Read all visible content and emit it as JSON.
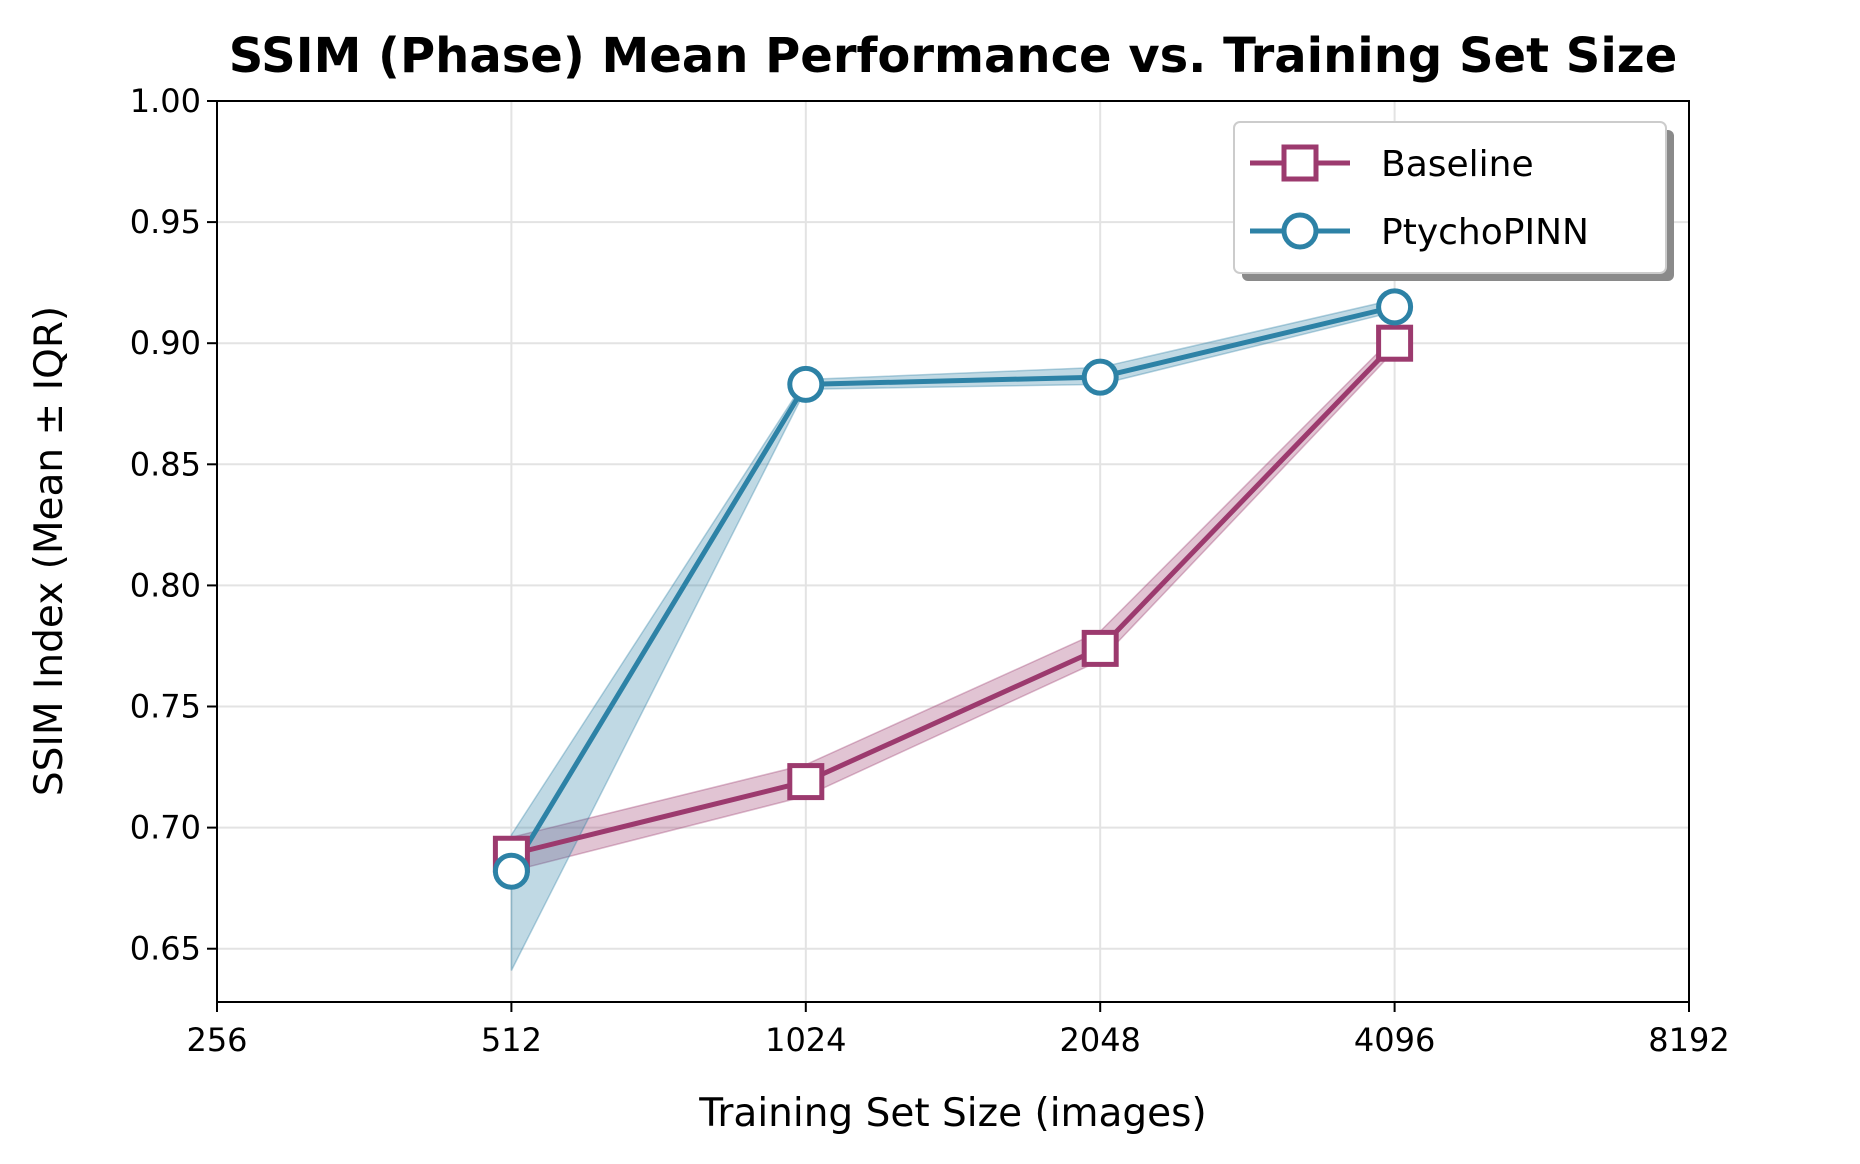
{
  "chart_data": {
    "type": "line",
    "title": "SSIM (Phase) Mean Performance vs. Training Set Size",
    "xlabel": "Training Set Size (images)",
    "ylabel": "SSIM Index (Mean ± IQR)",
    "x_scale": "log2",
    "xlim": [
      256,
      8192
    ],
    "ylim": [
      0.628,
      1.0
    ],
    "xticks": [
      256,
      512,
      1024,
      2048,
      4096,
      8192
    ],
    "xtick_labels": [
      "256",
      "512",
      "1024",
      "2048",
      "4096",
      "8192"
    ],
    "yticks": [
      0.65,
      0.7,
      0.75,
      0.8,
      0.85,
      0.9,
      0.95,
      1.0
    ],
    "ytick_labels": [
      "0.65",
      "0.70",
      "0.75",
      "0.80",
      "0.85",
      "0.90",
      "0.95",
      "1.00"
    ],
    "grid": true,
    "legend_position": "top-right",
    "series": [
      {
        "name": "Baseline",
        "color": "#9c3a6e",
        "marker": "square",
        "x": [
          512,
          1024,
          2048,
          4096
        ],
        "values": [
          0.689,
          0.719,
          0.774,
          0.9
        ],
        "band_low": [
          0.682,
          0.713,
          0.769,
          0.897
        ],
        "band_high": [
          0.696,
          0.726,
          0.781,
          0.903
        ]
      },
      {
        "name": "PtychoPINN",
        "color": "#2d82a6",
        "marker": "circle",
        "x": [
          512,
          1024,
          2048,
          4096
        ],
        "values": [
          0.682,
          0.883,
          0.886,
          0.915
        ],
        "band_low": [
          0.641,
          0.881,
          0.883,
          0.913
        ],
        "band_high": [
          0.697,
          0.885,
          0.89,
          0.918
        ]
      }
    ]
  }
}
